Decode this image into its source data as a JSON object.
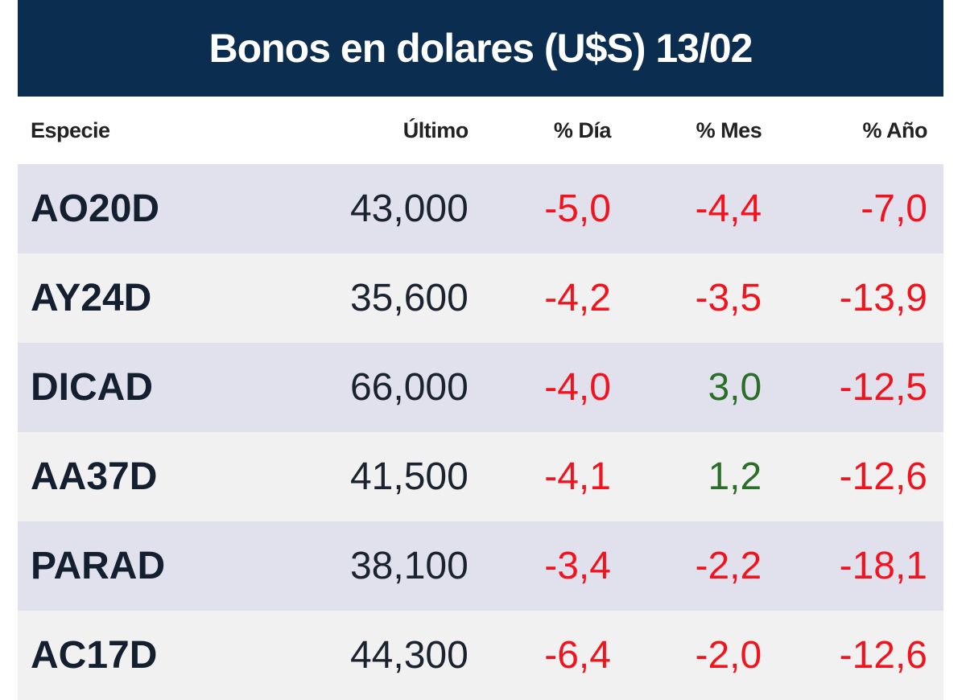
{
  "chart_data": {
    "type": "table",
    "title": "Bonos en dolares (U$S) 13/02",
    "columns": [
      "Especie",
      "Último",
      "% Día",
      "% Mes",
      "% Año"
    ],
    "rows": [
      {
        "especie": "AO20D",
        "ultimo": "43,000",
        "dia": "-5,0",
        "mes": "-4,4",
        "anio": "-7,0"
      },
      {
        "especie": "AY24D",
        "ultimo": "35,600",
        "dia": "-4,2",
        "mes": "-3,5",
        "anio": "-13,9"
      },
      {
        "especie": "DICAD",
        "ultimo": "66,000",
        "dia": "-4,0",
        "mes": "3,0",
        "anio": "-12,5"
      },
      {
        "especie": "AA37D",
        "ultimo": "41,500",
        "dia": "-4,1",
        "mes": "1,2",
        "anio": "-12,6"
      },
      {
        "especie": "PARAD",
        "ultimo": "38,100",
        "dia": "-3,4",
        "mes": "-2,2",
        "anio": "-18,1"
      },
      {
        "especie": "AC17D",
        "ultimo": "44,300",
        "dia": "-6,4",
        "mes": "-2,0",
        "anio": "-12,6"
      }
    ],
    "colors": {
      "header_bg": "#0b2d50",
      "negative": "#f0141e",
      "positive": "#2a6e2a",
      "row_odd": "#e1e1ed",
      "row_even": "#f1f1f1"
    }
  }
}
